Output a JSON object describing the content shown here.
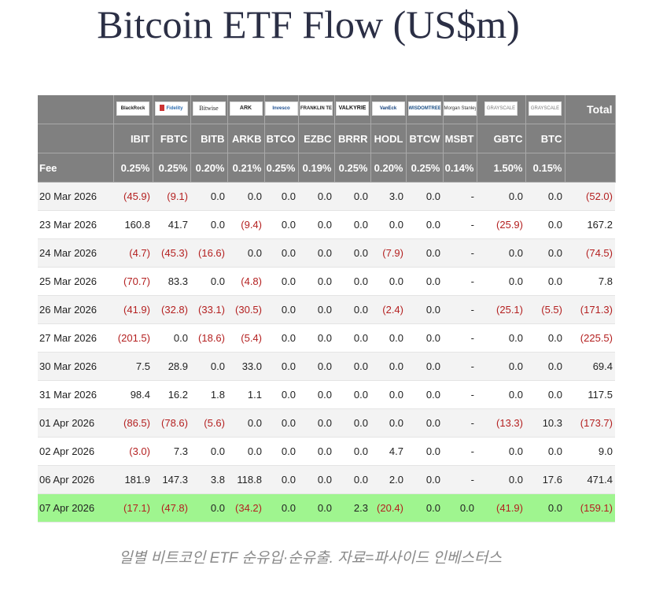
{
  "title": "Bitcoin ETF Flow (US$m)",
  "caption": "일별 비트코인 ETF 순유입·순유출. 자료=파사이드 인베스터스",
  "table": {
    "logos": [
      "BlackRock",
      "Fidelity",
      "Bitwise",
      "ARK",
      "Invesco",
      "FRANKLIN TEMPLETON",
      "VALKYRIE",
      "VanEck",
      "WISDOMTREE",
      "Morgan Stanley",
      "GRAYSCALE",
      "GRAYSCALE"
    ],
    "logo_icons": [
      "blackrock-logo-icon",
      "fidelity-logo-icon",
      "bitwise-logo-icon",
      "ark-logo-icon",
      "invesco-logo-icon",
      "franklin-logo-icon",
      "valkyrie-logo-icon",
      "vaneck-logo-icon",
      "wisdomtree-logo-icon",
      "morgan-stanley-logo-icon",
      "grayscale-logo-icon",
      "grayscale-logo-icon"
    ],
    "total_header": "Total",
    "tickers": [
      "IBIT",
      "FBTC",
      "BITB",
      "ARKB",
      "BTCO",
      "EZBC",
      "BRRR",
      "HODL",
      "BTCW",
      "MSBT",
      "GBTC",
      "BTC"
    ],
    "fee_label": "Fee",
    "fees": [
      "0.25%",
      "0.25%",
      "0.20%",
      "0.21%",
      "0.25%",
      "0.19%",
      "0.25%",
      "0.20%",
      "0.25%",
      "0.14%",
      "1.50%",
      "0.15%"
    ],
    "negative_color": "#b42020",
    "highlight_color": "#9ff58f",
    "header_color": "#808080",
    "rows": [
      {
        "date": "20 Mar 2026",
        "values": [
          "(45.9)",
          "(9.1)",
          "0.0",
          "0.0",
          "0.0",
          "0.0",
          "0.0",
          "3.0",
          "0.0",
          "-",
          "0.0",
          "0.0"
        ],
        "total": "(52.0)"
      },
      {
        "date": "23 Mar 2026",
        "values": [
          "160.8",
          "41.7",
          "0.0",
          "(9.4)",
          "0.0",
          "0.0",
          "0.0",
          "0.0",
          "0.0",
          "-",
          "(25.9)",
          "0.0"
        ],
        "total": "167.2"
      },
      {
        "date": "24 Mar 2026",
        "values": [
          "(4.7)",
          "(45.3)",
          "(16.6)",
          "0.0",
          "0.0",
          "0.0",
          "0.0",
          "(7.9)",
          "0.0",
          "-",
          "0.0",
          "0.0"
        ],
        "total": "(74.5)"
      },
      {
        "date": "25 Mar 2026",
        "values": [
          "(70.7)",
          "83.3",
          "0.0",
          "(4.8)",
          "0.0",
          "0.0",
          "0.0",
          "0.0",
          "0.0",
          "-",
          "0.0",
          "0.0"
        ],
        "total": "7.8"
      },
      {
        "date": "26 Mar 2026",
        "values": [
          "(41.9)",
          "(32.8)",
          "(33.1)",
          "(30.5)",
          "0.0",
          "0.0",
          "0.0",
          "(2.4)",
          "0.0",
          "-",
          "(25.1)",
          "(5.5)"
        ],
        "total": "(171.3)"
      },
      {
        "date": "27 Mar 2026",
        "values": [
          "(201.5)",
          "0.0",
          "(18.6)",
          "(5.4)",
          "0.0",
          "0.0",
          "0.0",
          "0.0",
          "0.0",
          "-",
          "0.0",
          "0.0"
        ],
        "total": "(225.5)"
      },
      {
        "date": "30 Mar 2026",
        "values": [
          "7.5",
          "28.9",
          "0.0",
          "33.0",
          "0.0",
          "0.0",
          "0.0",
          "0.0",
          "0.0",
          "-",
          "0.0",
          "0.0"
        ],
        "total": "69.4"
      },
      {
        "date": "31 Mar 2026",
        "values": [
          "98.4",
          "16.2",
          "1.8",
          "1.1",
          "0.0",
          "0.0",
          "0.0",
          "0.0",
          "0.0",
          "-",
          "0.0",
          "0.0"
        ],
        "total": "117.5"
      },
      {
        "date": "01 Apr 2026",
        "values": [
          "(86.5)",
          "(78.6)",
          "(5.6)",
          "0.0",
          "0.0",
          "0.0",
          "0.0",
          "0.0",
          "0.0",
          "-",
          "(13.3)",
          "10.3"
        ],
        "total": "(173.7)"
      },
      {
        "date": "02 Apr 2026",
        "values": [
          "(3.0)",
          "7.3",
          "0.0",
          "0.0",
          "0.0",
          "0.0",
          "0.0",
          "4.7",
          "0.0",
          "-",
          "0.0",
          "0.0"
        ],
        "total": "9.0"
      },
      {
        "date": "06 Apr 2026",
        "values": [
          "181.9",
          "147.3",
          "3.8",
          "118.8",
          "0.0",
          "0.0",
          "0.0",
          "2.0",
          "0.0",
          "-",
          "0.0",
          "17.6"
        ],
        "total": "471.4"
      },
      {
        "date": "07 Apr 2026",
        "values": [
          "(17.1)",
          "(47.8)",
          "0.0",
          "(34.2)",
          "0.0",
          "0.0",
          "2.3",
          "(20.4)",
          "0.0",
          "0.0",
          "(41.9)",
          "0.0"
        ],
        "total": "(159.1)",
        "highlight": true
      }
    ]
  }
}
